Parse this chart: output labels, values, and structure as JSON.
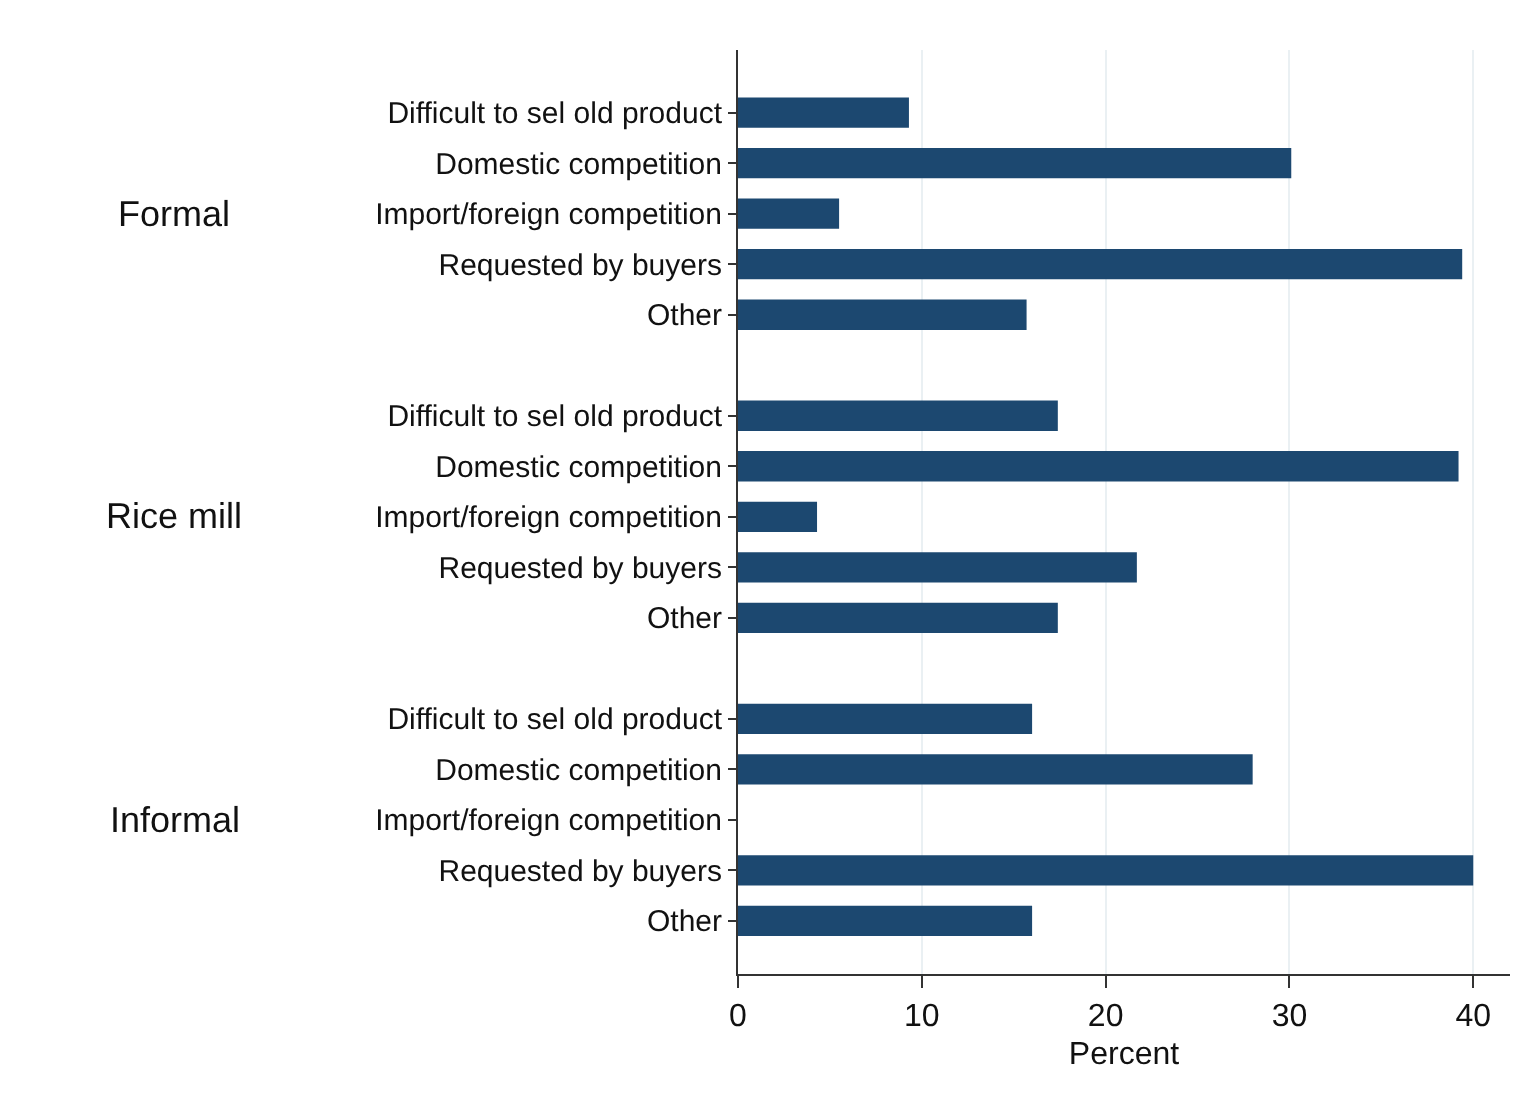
{
  "chart_data": {
    "type": "bar",
    "orientation": "horizontal",
    "xlabel": "Percent",
    "categories": [
      "Difficult to sel old product",
      "Domestic competition",
      "Import/foreign competition",
      "Requested by buyers",
      "Other",
      null,
      "Difficult to sel old product",
      "Domestic competition",
      "Import/foreign competition",
      "Requested by buyers",
      "Other",
      null,
      "Difficult to sel old product",
      "Domestic competition",
      "Import/foreign competition",
      "Requested by buyers",
      "Other"
    ],
    "annotations": [
      "Formal",
      "Rice mill",
      "Informal"
    ],
    "values": [
      9.3,
      30.1,
      5.5,
      39.4,
      15.7,
      null,
      17.4,
      39.2,
      4.3,
      21.7,
      17.4,
      null,
      16.0,
      28.0,
      0,
      40.0,
      16.0
    ],
    "color": "#1c4870",
    "xlim": [
      0,
      42
    ],
    "xticks": [
      0,
      10,
      20,
      30,
      40
    ],
    "grid": "x"
  }
}
